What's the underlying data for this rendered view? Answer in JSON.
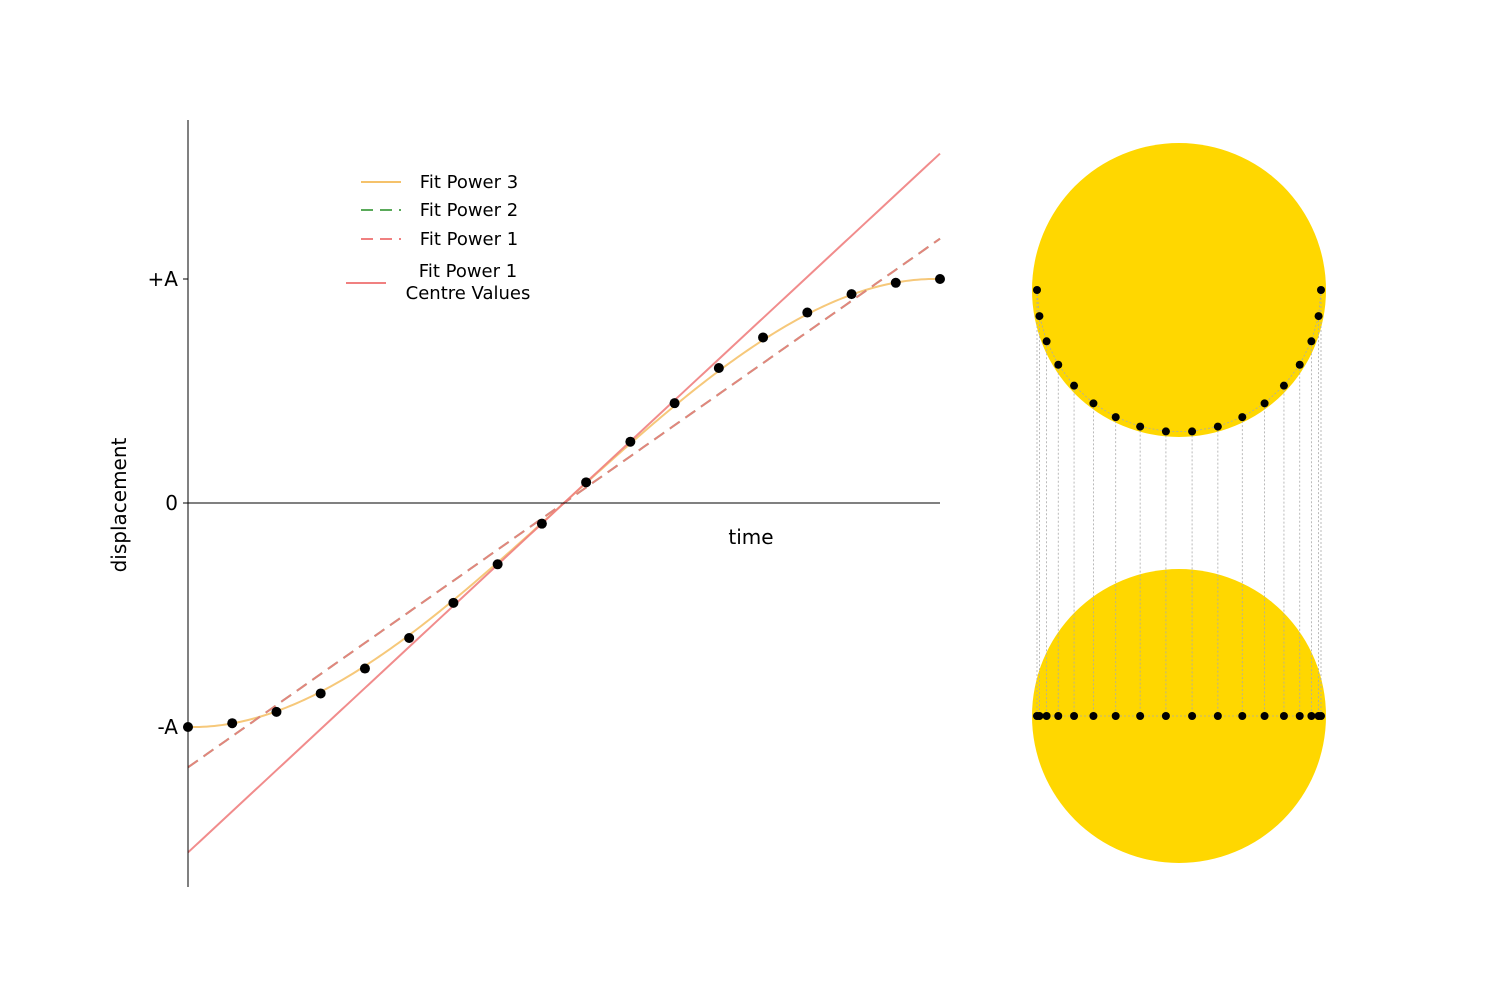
{
  "chart_data": [
    {
      "type": "line",
      "title": "",
      "xlabel": "time",
      "ylabel": "displacement",
      "xlim": [
        -1,
        1
      ],
      "ylim": [
        -1.71,
        1.71
      ],
      "y_ticks": [
        {
          "value": 1,
          "label": "+A"
        },
        {
          "value": 0,
          "label": "0"
        },
        {
          "value": -1,
          "label": "-A"
        }
      ],
      "grid": false,
      "legend_position": "upper-left",
      "points": {
        "color": "#000000",
        "x": [
          -1.0,
          -0.8824,
          -0.7647,
          -0.6471,
          -0.5294,
          -0.4118,
          -0.2941,
          -0.1765,
          -0.0588,
          0.0588,
          0.1765,
          0.2941,
          0.4118,
          0.5294,
          0.6471,
          0.7647,
          0.8824,
          1.0
        ],
        "y": [
          -1.0,
          -0.983,
          -0.9325,
          -0.8502,
          -0.739,
          -0.6026,
          -0.4457,
          -0.2737,
          -0.0923,
          0.0923,
          0.2737,
          0.4457,
          0.6026,
          0.739,
          0.8502,
          0.9325,
          0.983,
          1.0
        ]
      },
      "series": [
        {
          "name": "Fit Power 3",
          "style": "solid",
          "color": "#f5c26b",
          "coefficients": [
            0,
            1.52,
            0,
            -0.52
          ]
        },
        {
          "name": "Fit Power 2",
          "style": "dashed",
          "color": "#5aaa5a",
          "coefficients": [
            0,
            1.18,
            0
          ]
        },
        {
          "name": "Fit Power 1",
          "style": "dashed",
          "color": "#f08080",
          "coefficients": [
            0,
            1.18
          ]
        },
        {
          "name": "Fit Power 1\nCentre Values",
          "style": "solid",
          "color": "#f08080",
          "coefficients": [
            0,
            1.56
          ]
        }
      ]
    },
    {
      "type": "scatter",
      "description_free": true,
      "circle_color": "#ffd700",
      "point_color": "#000000",
      "guide_color": "#aaaaaa",
      "angles_deg": [
        180.0,
        190.59,
        201.18,
        211.76,
        222.35,
        232.94,
        243.53,
        254.12,
        264.71,
        275.29,
        285.88,
        296.47,
        307.06,
        317.65,
        328.24,
        338.82,
        349.41,
        360.0
      ]
    }
  ]
}
